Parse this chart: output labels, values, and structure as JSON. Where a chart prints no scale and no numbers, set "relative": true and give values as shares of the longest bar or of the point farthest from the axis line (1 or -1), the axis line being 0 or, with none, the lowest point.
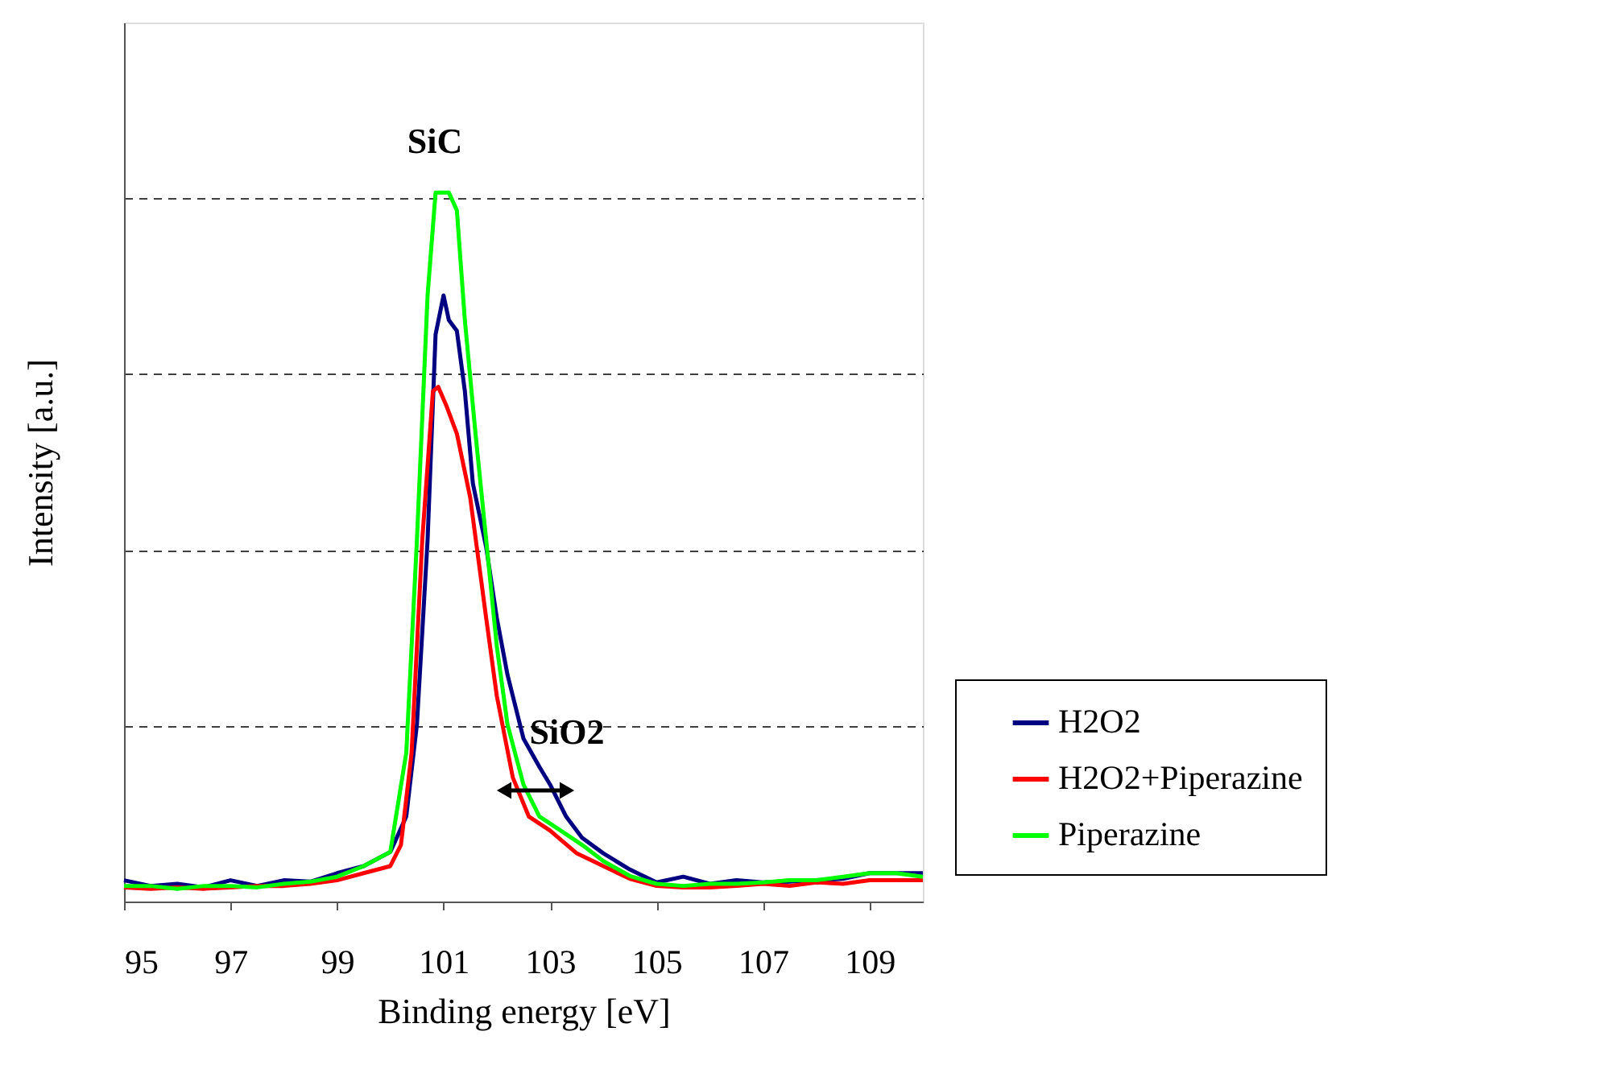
{
  "chart_data": {
    "type": "line",
    "relative": true,
    "xlabel": "Binding energy [eV]",
    "ylabel": "Intensity [a.u.]",
    "xlim": [
      95,
      110
    ],
    "xticks": [
      95,
      97,
      99,
      101,
      103,
      105,
      107,
      109
    ],
    "grid": "y",
    "legend": "bottom right",
    "line_style": "solid",
    "marker": "none",
    "annotations": [
      "SiC",
      "SiO2"
    ],
    "series": [
      {
        "name": "H2O2",
        "color": "#000080",
        "x": [
          95,
          95.5,
          96,
          96.5,
          97,
          97.5,
          98,
          98.5,
          99,
          99.5,
          100,
          100.3,
          100.5,
          100.7,
          100.85,
          101.0,
          101.1,
          101.25,
          101.4,
          101.55,
          101.8,
          102.0,
          102.2,
          102.5,
          102.8,
          103.0,
          103.3,
          103.6,
          104.0,
          104.5,
          105,
          105.5,
          106,
          106.5,
          107,
          107.5,
          108,
          108.5,
          109,
          109.5,
          110
        ],
        "values": [
          0.03,
          0.022,
          0.025,
          0.02,
          0.03,
          0.022,
          0.03,
          0.028,
          0.04,
          0.05,
          0.07,
          0.12,
          0.25,
          0.51,
          0.8,
          0.855,
          0.82,
          0.805,
          0.72,
          0.59,
          0.5,
          0.4,
          0.32,
          0.23,
          0.19,
          0.165,
          0.12,
          0.09,
          0.068,
          0.045,
          0.027,
          0.035,
          0.025,
          0.03,
          0.027,
          0.028,
          0.03,
          0.032,
          0.04,
          0.04,
          0.04
        ]
      },
      {
        "name": "H2O2+Piperazine",
        "color": "#ff0000",
        "x": [
          95,
          95.5,
          96,
          96.5,
          97,
          97.5,
          98,
          98.5,
          99,
          99.5,
          100,
          100.2,
          100.4,
          100.6,
          100.8,
          100.9,
          101.05,
          101.25,
          101.5,
          101.8,
          102.0,
          102.3,
          102.6,
          103.0,
          103.5,
          104.0,
          104.5,
          105,
          105.5,
          106,
          106.5,
          107,
          107.5,
          108,
          108.5,
          109,
          109.5,
          110
        ],
        "values": [
          0.02,
          0.018,
          0.02,
          0.018,
          0.02,
          0.022,
          0.022,
          0.025,
          0.03,
          0.04,
          0.05,
          0.08,
          0.21,
          0.51,
          0.72,
          0.726,
          0.7,
          0.66,
          0.57,
          0.4,
          0.29,
          0.175,
          0.12,
          0.1,
          0.068,
          0.05,
          0.032,
          0.022,
          0.02,
          0.02,
          0.022,
          0.025,
          0.022,
          0.027,
          0.025,
          0.03,
          0.03,
          0.03
        ]
      },
      {
        "name": "Piperazine",
        "color": "#00ff00",
        "x": [
          95,
          95.5,
          96,
          96.5,
          97,
          97.5,
          98,
          98.5,
          99,
          99.5,
          100,
          100.3,
          100.5,
          100.7,
          100.85,
          101.1,
          101.25,
          101.4,
          101.6,
          101.8,
          102.0,
          102.2,
          102.5,
          102.8,
          103.2,
          103.6,
          104.0,
          104.5,
          105,
          105.5,
          106,
          106.5,
          107,
          107.5,
          108,
          108.5,
          109,
          109.5,
          110
        ],
        "values": [
          0.022,
          0.022,
          0.018,
          0.022,
          0.022,
          0.02,
          0.025,
          0.028,
          0.035,
          0.05,
          0.07,
          0.21,
          0.51,
          0.855,
          1.0,
          1.0,
          0.975,
          0.82,
          0.66,
          0.51,
          0.36,
          0.25,
          0.165,
          0.12,
          0.1,
          0.08,
          0.057,
          0.036,
          0.025,
          0.022,
          0.025,
          0.025,
          0.027,
          0.03,
          0.03,
          0.035,
          0.04,
          0.04,
          0.035
        ]
      }
    ]
  }
}
